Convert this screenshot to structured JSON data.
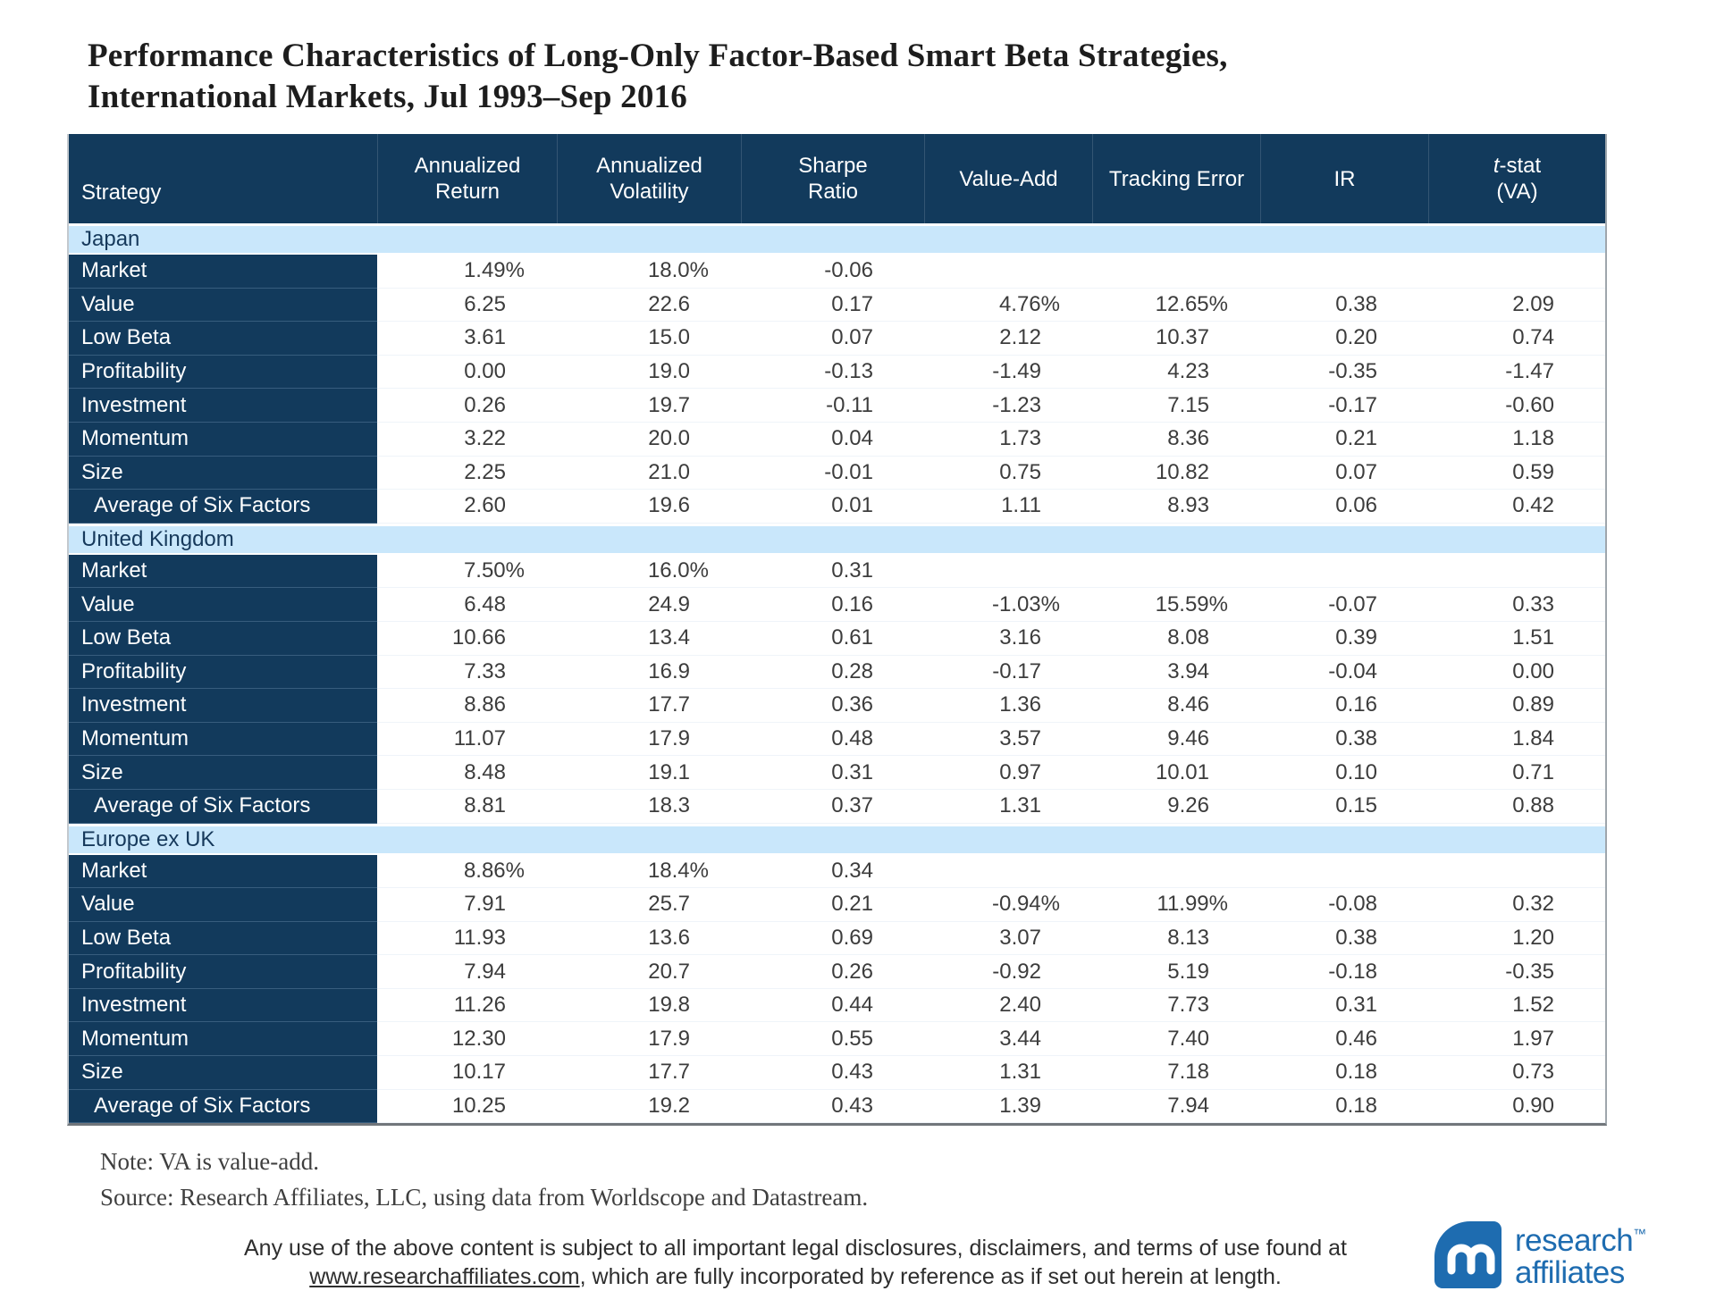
{
  "title": {
    "line1": "Performance Characteristics of Long-Only Factor-Based Smart Beta Strategies,",
    "line2": "International Markets, Jul 1993–Sep 2016"
  },
  "colors": {
    "header_navy": "#123a5c",
    "section_band_blue": "#c9e7fb",
    "section_text_navy": "#16395b",
    "body_text": "#3c3c3c",
    "logo_blue": "#1e6cb0"
  },
  "table": {
    "columns": [
      {
        "key": "strategy",
        "label_lines": [
          "Strategy"
        ]
      },
      {
        "key": "annualized-return",
        "label_lines": [
          "Annualized",
          "Return"
        ]
      },
      {
        "key": "annualized-volatility",
        "label_lines": [
          "Annualized",
          "Volatility"
        ]
      },
      {
        "key": "sharpe-ratio",
        "label_lines": [
          "Sharpe",
          "Ratio"
        ]
      },
      {
        "key": "value-add",
        "label_lines": [
          "Value-Add"
        ]
      },
      {
        "key": "tracking-error",
        "label_lines": [
          "Tracking Error"
        ]
      },
      {
        "key": "ir",
        "label_lines": [
          "IR"
        ]
      },
      {
        "key": "t-stat-va",
        "label_lines": [
          "t-stat",
          "(VA)"
        ],
        "italic_first": true
      }
    ],
    "sections": [
      {
        "name": "Japan",
        "rows": [
          {
            "strategy": "Market",
            "values": [
              "1.49%",
              "18.0%",
              "-0.06",
              "",
              "",
              "",
              ""
            ]
          },
          {
            "strategy": "Value",
            "values": [
              "6.25",
              "22.6",
              "0.17",
              "4.76%",
              "12.65%",
              "0.38",
              "2.09"
            ]
          },
          {
            "strategy": "Low Beta",
            "values": [
              "3.61",
              "15.0",
              "0.07",
              "2.12",
              "10.37",
              "0.20",
              "0.74"
            ]
          },
          {
            "strategy": "Profitability",
            "values": [
              "0.00",
              "19.0",
              "-0.13",
              "-1.49",
              "4.23",
              "-0.35",
              "-1.47"
            ]
          },
          {
            "strategy": "Investment",
            "values": [
              "0.26",
              "19.7",
              "-0.11",
              "-1.23",
              "7.15",
              "-0.17",
              "-0.60"
            ]
          },
          {
            "strategy": "Momentum",
            "values": [
              "3.22",
              "20.0",
              "0.04",
              "1.73",
              "8.36",
              "0.21",
              "1.18"
            ]
          },
          {
            "strategy": "Size",
            "values": [
              "2.25",
              "21.0",
              "-0.01",
              "0.75",
              "10.82",
              "0.07",
              "0.59"
            ]
          },
          {
            "strategy": "Average of Six Factors",
            "indent": true,
            "values": [
              "2.60",
              "19.6",
              "0.01",
              "1.11",
              "8.93",
              "0.06",
              "0.42"
            ]
          }
        ]
      },
      {
        "name": "United Kingdom",
        "rows": [
          {
            "strategy": "Market",
            "values": [
              "7.50%",
              "16.0%",
              "0.31",
              "",
              "",
              "",
              ""
            ]
          },
          {
            "strategy": "Value",
            "values": [
              "6.48",
              "24.9",
              "0.16",
              "-1.03%",
              "15.59%",
              "-0.07",
              "0.33"
            ]
          },
          {
            "strategy": "Low Beta",
            "values": [
              "10.66",
              "13.4",
              "0.61",
              "3.16",
              "8.08",
              "0.39",
              "1.51"
            ]
          },
          {
            "strategy": "Profitability",
            "values": [
              "7.33",
              "16.9",
              "0.28",
              "-0.17",
              "3.94",
              "-0.04",
              "0.00"
            ]
          },
          {
            "strategy": "Investment",
            "values": [
              "8.86",
              "17.7",
              "0.36",
              "1.36",
              "8.46",
              "0.16",
              "0.89"
            ]
          },
          {
            "strategy": "Momentum",
            "values": [
              "11.07",
              "17.9",
              "0.48",
              "3.57",
              "9.46",
              "0.38",
              "1.84"
            ]
          },
          {
            "strategy": "Size",
            "values": [
              "8.48",
              "19.1",
              "0.31",
              "0.97",
              "10.01",
              "0.10",
              "0.71"
            ]
          },
          {
            "strategy": "Average of Six Factors",
            "indent": true,
            "values": [
              "8.81",
              "18.3",
              "0.37",
              "1.31",
              "9.26",
              "0.15",
              "0.88"
            ]
          }
        ]
      },
      {
        "name": "Europe ex UK",
        "rows": [
          {
            "strategy": "Market",
            "values": [
              "8.86%",
              "18.4%",
              "0.34",
              "",
              "",
              "",
              ""
            ]
          },
          {
            "strategy": "Value",
            "values": [
              "7.91",
              "25.7",
              "0.21",
              "-0.94%",
              "11.99%",
              "-0.08",
              "0.32"
            ]
          },
          {
            "strategy": "Low Beta",
            "values": [
              "11.93",
              "13.6",
              "0.69",
              "3.07",
              "8.13",
              "0.38",
              "1.20"
            ]
          },
          {
            "strategy": "Profitability",
            "values": [
              "7.94",
              "20.7",
              "0.26",
              "-0.92",
              "5.19",
              "-0.18",
              "-0.35"
            ]
          },
          {
            "strategy": "Investment",
            "values": [
              "11.26",
              "19.8",
              "0.44",
              "2.40",
              "7.73",
              "0.31",
              "1.52"
            ]
          },
          {
            "strategy": "Momentum",
            "values": [
              "12.30",
              "17.9",
              "0.55",
              "3.44",
              "7.40",
              "0.46",
              "1.97"
            ]
          },
          {
            "strategy": "Size",
            "values": [
              "10.17",
              "17.7",
              "0.43",
              "1.31",
              "7.18",
              "0.18",
              "0.73"
            ]
          },
          {
            "strategy": "Average of Six Factors",
            "indent": true,
            "values": [
              "10.25",
              "19.2",
              "0.43",
              "1.39",
              "7.94",
              "0.18",
              "0.90"
            ]
          }
        ]
      }
    ]
  },
  "notes": {
    "note": "Note: VA is value-add.",
    "source": "Source: Research Affiliates, LLC, using data from Worldscope and Datastream."
  },
  "disclaimer": {
    "text_before": "Any use of the above content is subject to all important legal disclosures, disclaimers, and terms of use found at",
    "link": "www.researchaffiliates.com",
    "text_after": ", which are fully incorporated by reference as if set out herein at length."
  },
  "logo": {
    "word1": "research",
    "tm": "™",
    "word2": "affiliates"
  }
}
